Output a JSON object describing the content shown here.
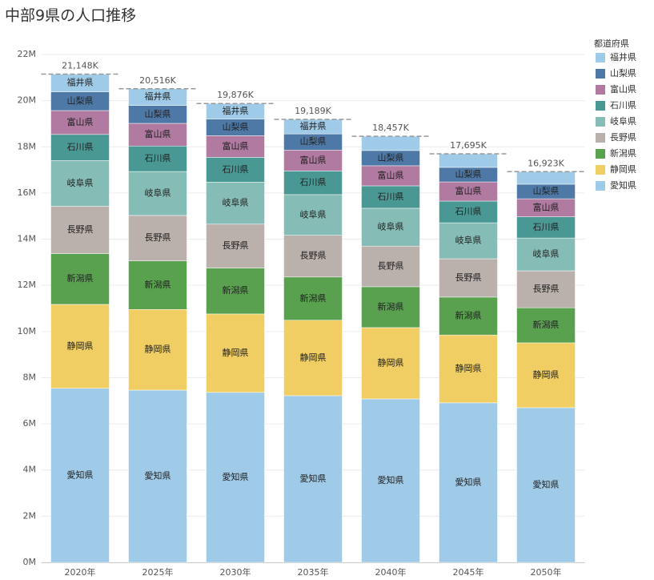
{
  "chart_data": {
    "type": "stacked_bar",
    "title": "中部9県の人口推移",
    "legend_title": "都道府県",
    "categories": [
      "2020年",
      "2025年",
      "2030年",
      "2035年",
      "2040年",
      "2045年",
      "2050年"
    ],
    "series": [
      {
        "name": "福井県",
        "color": "#a0cbe8",
        "values": [
          767000,
          723000,
          676000,
          629000,
          617000,
          585000,
          543000
        ]
      },
      {
        "name": "山梨県",
        "color": "#4e79a7",
        "values": [
          810000,
          777000,
          720000,
          700000,
          660000,
          630000,
          630000
        ]
      },
      {
        "name": "富山県",
        "color": "#b07aa1",
        "values": [
          1035000,
          980000,
          935000,
          905000,
          870000,
          830000,
          780000
        ]
      },
      {
        "name": "石川県",
        "color": "#499894",
        "values": [
          1133000,
          1105000,
          1075000,
          1025000,
          970000,
          940000,
          920000
        ]
      },
      {
        "name": "岐阜県",
        "color": "#86bcb6",
        "values": [
          1979000,
          1904000,
          1820000,
          1760000,
          1640000,
          1560000,
          1420000
        ]
      },
      {
        "name": "長野県",
        "color": "#bab0ac",
        "values": [
          2048000,
          1964000,
          1900000,
          1810000,
          1760000,
          1660000,
          1600000
        ]
      },
      {
        "name": "新潟県",
        "color": "#59a14f",
        "values": [
          2201000,
          2107000,
          1990000,
          1870000,
          1770000,
          1640000,
          1520000
        ]
      },
      {
        "name": "静岡県",
        "color": "#f1ce63",
        "values": [
          3633000,
          3495000,
          3398000,
          3270000,
          3090000,
          2940000,
          2810000
        ]
      },
      {
        "name": "愛知県",
        "color": "#a0cbe8",
        "values": [
          7542000,
          7461000,
          7362000,
          7220000,
          7080000,
          6910000,
          6700000
        ]
      }
    ],
    "totals": {
      "values": [
        21148000,
        20516000,
        19876000,
        19189000,
        18457000,
        17695000,
        16923000
      ],
      "value_labels": [
        "21,148K",
        "20,516K",
        "19,876K",
        "19,189K",
        "18,457K",
        "17,695K",
        "16,923K"
      ]
    },
    "ylim": [
      0,
      22000000
    ],
    "yticks": [
      {
        "value": 0,
        "label": "0M"
      },
      {
        "value": 2000000,
        "label": "2M"
      },
      {
        "value": 4000000,
        "label": "4M"
      },
      {
        "value": 6000000,
        "label": "6M"
      },
      {
        "value": 8000000,
        "label": "8M"
      },
      {
        "value": 10000000,
        "label": "10M"
      },
      {
        "value": 12000000,
        "label": "12M"
      },
      {
        "value": 14000000,
        "label": "14M"
      },
      {
        "value": 16000000,
        "label": "16M"
      },
      {
        "value": 18000000,
        "label": "18M"
      },
      {
        "value": 20000000,
        "label": "20M"
      },
      {
        "value": 22000000,
        "label": "22M"
      }
    ],
    "grid": true
  }
}
